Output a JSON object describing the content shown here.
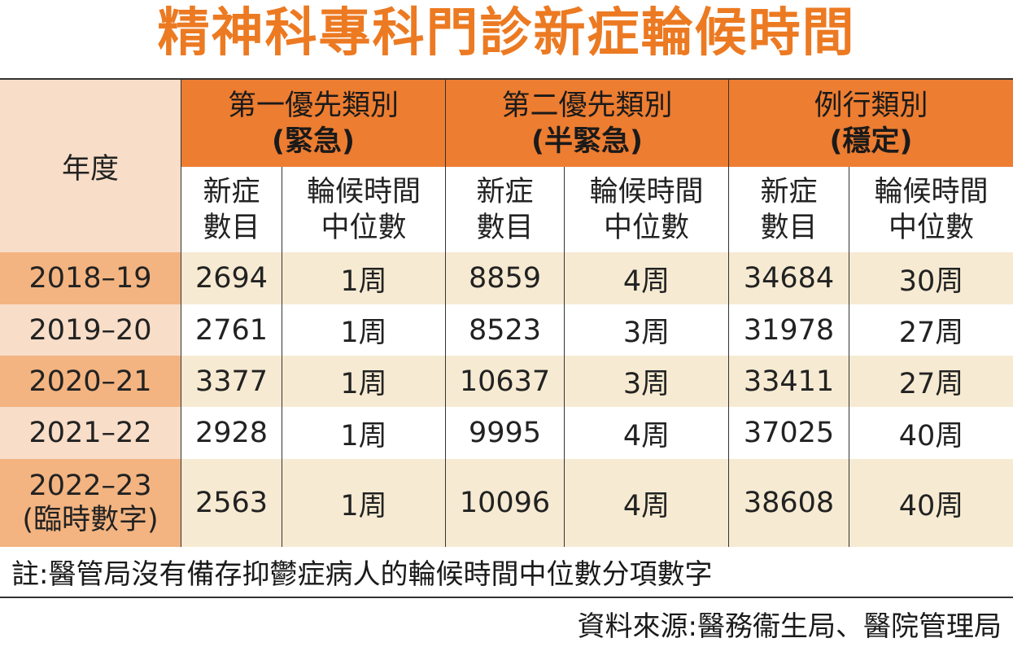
{
  "title": "精神科專科門診新症輪候時間",
  "header": {
    "year_label": "年度",
    "groups": [
      {
        "line1": "第一優先類別",
        "line2": "(緊急)"
      },
      {
        "line1": "第二優先類別",
        "line2": "(半緊急)"
      },
      {
        "line1": "例行類別",
        "line2": "(穩定)"
      }
    ],
    "sub_new_l1": "新症",
    "sub_new_l2": "數目",
    "sub_wait_l1": "輪候時間",
    "sub_wait_l2": "中位數"
  },
  "rows": [
    {
      "year": "2018–19",
      "year2": "",
      "u_new": "2694",
      "u_wait": "1周",
      "s_new": "8859",
      "s_wait": "4周",
      "r_new": "34684",
      "r_wait": "30周"
    },
    {
      "year": "2019–20",
      "year2": "",
      "u_new": "2761",
      "u_wait": "1周",
      "s_new": "8523",
      "s_wait": "3周",
      "r_new": "31978",
      "r_wait": "27周"
    },
    {
      "year": "2020–21",
      "year2": "",
      "u_new": "3377",
      "u_wait": "1周",
      "s_new": "10637",
      "s_wait": "3周",
      "r_new": "33411",
      "r_wait": "27周"
    },
    {
      "year": "2021–22",
      "year2": "",
      "u_new": "2928",
      "u_wait": "1周",
      "s_new": "9995",
      "s_wait": "4周",
      "r_new": "37025",
      "r_wait": "40周"
    },
    {
      "year": "2022–23",
      "year2": "(臨時數字)",
      "u_new": "2563",
      "u_wait": "1周",
      "s_new": "10096",
      "s_wait": "4周",
      "r_new": "38608",
      "r_wait": "40周"
    }
  ],
  "note": "註:醫管局沒有備存抑鬱症病人的輪候時間中位數分項數字",
  "source": "資料來源:醫務衞生局、醫院管理局"
}
